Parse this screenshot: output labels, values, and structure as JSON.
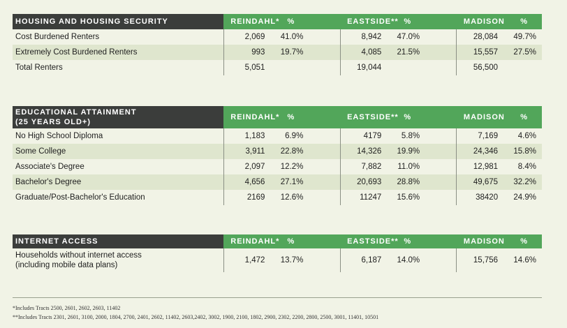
{
  "tables": [
    {
      "title": "HOUSING AND HOUSING SECURITY",
      "headers": [
        "REINDAHL*",
        "%",
        "EASTSIDE**",
        "%",
        "MADISON",
        "%"
      ],
      "rows": [
        {
          "label": "Cost Burdened Renters",
          "values": [
            "2,069",
            "41.0%",
            "8,942",
            "47.0%",
            "28,084",
            "49.7%"
          ]
        },
        {
          "label": "Extremely Cost Burdened Renters",
          "values": [
            "993",
            "19.7%",
            "4,085",
            "21.5%",
            "15,557",
            "27.5%"
          ]
        },
        {
          "label": "Total Renters",
          "values": [
            "5,051",
            "",
            "19,044",
            "",
            "56,500",
            ""
          ]
        }
      ]
    },
    {
      "title_line1": "EDUCATIONAL ATTAINMENT",
      "title_line2": "(25 YEARS OLD+)",
      "headers": [
        "REINDAHL*",
        "%",
        "EASTSIDE**",
        "%",
        "MADISON",
        "%"
      ],
      "rows": [
        {
          "label": "No High School Diploma",
          "values": [
            "1,183",
            "6.9%",
            "4179",
            "5.8%",
            "7,169",
            "4.6%"
          ]
        },
        {
          "label": "Some College",
          "values": [
            "3,911",
            "22.8%",
            "14,326",
            "19.9%",
            "24,346",
            "15.8%"
          ]
        },
        {
          "label": "Associate's Degree",
          "values": [
            "2,097",
            "12.2%",
            "7,882",
            "11.0%",
            "12,981",
            "8.4%"
          ]
        },
        {
          "label": "Bachelor's Degree",
          "values": [
            "4,656",
            "27.1%",
            "20,693",
            "28.8%",
            "49,675",
            "32.2%"
          ]
        },
        {
          "label": "Graduate/Post-Bachelor's Education",
          "values": [
            "2169",
            "12.6%",
            "11247",
            "15.6%",
            "38420",
            "24.9%"
          ]
        }
      ]
    },
    {
      "title": "INTERNET ACCESS",
      "headers": [
        "REINDAHL*",
        "%",
        "EASTSIDE**",
        "%",
        "MADISON",
        "%"
      ],
      "rows": [
        {
          "label_line1": "Households without internet access",
          "label_line2": "(including mobile data plans)",
          "values": [
            "1,472",
            "13.7%",
            "6,187",
            "14.0%",
            "15,756",
            "14.6%"
          ]
        }
      ]
    }
  ],
  "footnotes": [
    "*Includes Tracts 2500, 2601, 2602, 2603, 11402",
    "**Includes Tracts 2301, 2601, 3100, 2000, 1804, 2700, 2401, 2602, 11402, 2603,2402, 3002, 1900, 2100, 1802, 2900, 2302, 2200, 2800, 2500, 3001, 11401, 10501"
  ],
  "colors": {
    "header_dark": "#3b3d3b",
    "header_green": "#52a65a",
    "row_shade": "#dfe6ce",
    "background": "#f1f3e6"
  }
}
